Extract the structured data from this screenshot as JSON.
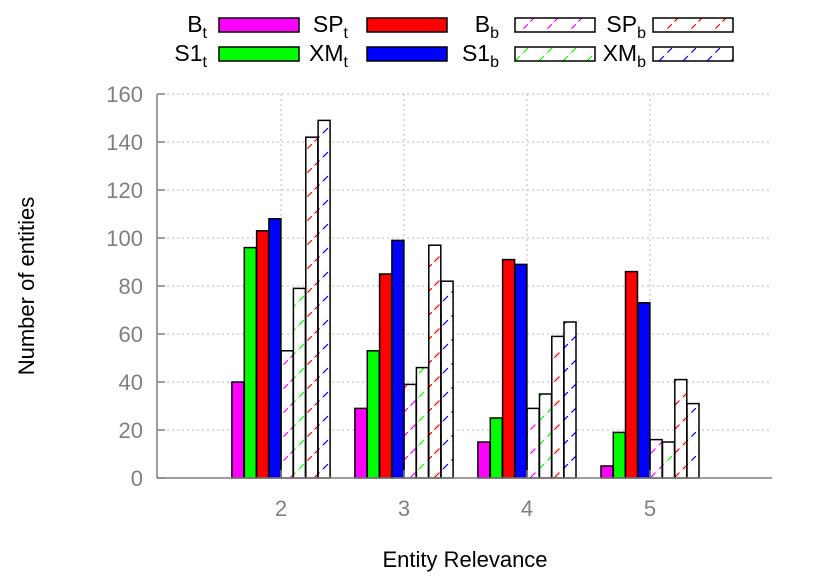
{
  "chart_data": {
    "type": "bar",
    "xlabel": "Entity Relevance",
    "ylabel": "Number of entities",
    "categories": [
      "2",
      "3",
      "4",
      "5"
    ],
    "ylim": [
      0,
      160
    ],
    "yticks": [
      0,
      20,
      40,
      60,
      80,
      100,
      120,
      140,
      160
    ],
    "grid": true,
    "legend_position": "top",
    "series": [
      {
        "base": "B",
        "sub": "t",
        "style": "solid",
        "color": "#ff00ff",
        "values": [
          40,
          29,
          15,
          5
        ]
      },
      {
        "base": "S1",
        "sub": "t",
        "style": "solid",
        "color": "#00ff00",
        "values": [
          96,
          53,
          25,
          19
        ]
      },
      {
        "base": "SP",
        "sub": "t",
        "style": "solid",
        "color": "#ff0000",
        "values": [
          103,
          85,
          91,
          86
        ]
      },
      {
        "base": "XM",
        "sub": "t",
        "style": "solid",
        "color": "#0000ff",
        "values": [
          108,
          99,
          89,
          73
        ]
      },
      {
        "base": "B",
        "sub": "b",
        "style": "hatched",
        "color": "#ff00ff",
        "values": [
          53,
          39,
          29,
          16
        ]
      },
      {
        "base": "S1",
        "sub": "b",
        "style": "hatched",
        "color": "#00ff00",
        "values": [
          79,
          46,
          35,
          15
        ]
      },
      {
        "base": "SP",
        "sub": "b",
        "style": "hatched",
        "color": "#ff0000",
        "values": [
          142,
          97,
          59,
          41
        ]
      },
      {
        "base": "XM",
        "sub": "b",
        "style": "hatched",
        "color": "#0000ff",
        "values": [
          149,
          82,
          65,
          31
        ]
      }
    ]
  }
}
